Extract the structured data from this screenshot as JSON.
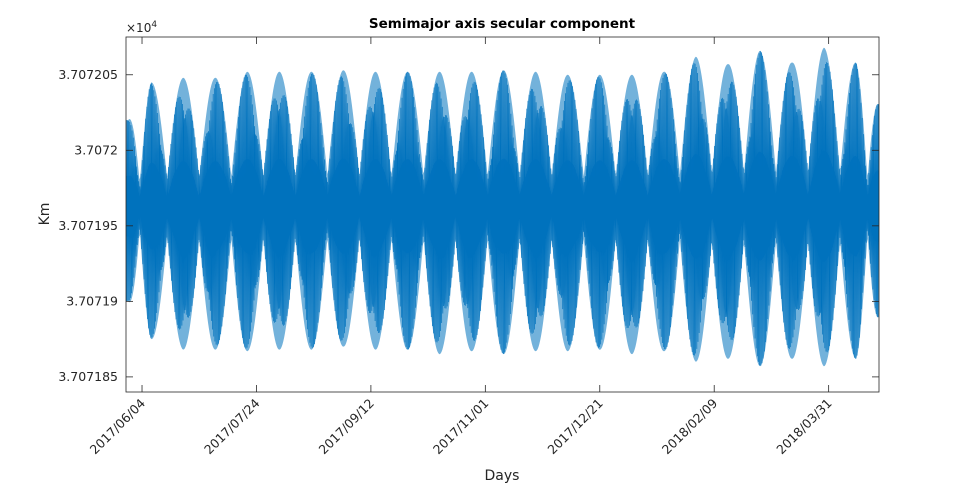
{
  "chart_data": {
    "type": "line",
    "title": "Semimajor axis secular component",
    "xlabel": "Days",
    "ylabel": "Km",
    "exponent_label": "×10",
    "exponent_power": "4",
    "x_range": [
      "2017-05-28",
      "2018-04-22"
    ],
    "ylim": [
      3.707184,
      3.7072075
    ],
    "x_tick_labels": [
      "2017/06/04",
      "2017/07/24",
      "2017/09/12",
      "2017/11/01",
      "2017/12/21",
      "2018/02/09",
      "2018/03/31"
    ],
    "x_tick_dates": [
      "2017-06-04",
      "2017-07-24",
      "2017-09-12",
      "2017-11-01",
      "2017-12-21",
      "2018-02-09",
      "2018-03-31"
    ],
    "y_tick_labels": [
      "3.707185",
      "3.70719",
      "3.707195",
      "3.7072",
      "3.707205"
    ],
    "y_tick_values": [
      3.707185,
      3.70719,
      3.707195,
      3.7072,
      3.707205
    ],
    "grid": false,
    "legend": "none",
    "series": [
      {
        "color": "#0072BD",
        "mean": 3.7071963,
        "envelope_cycles": 26,
        "envelope_peaks": [
          {
            "date": "2017-05-29",
            "max": 3.707202,
            "min": 3.70719
          },
          {
            "date": "2017-06-08",
            "max": 3.7072045,
            "min": 3.7071875
          },
          {
            "date": "2017-06-22",
            "max": 3.7072048,
            "min": 3.7071868
          },
          {
            "date": "2017-07-06",
            "max": 3.7072048,
            "min": 3.7071868
          },
          {
            "date": "2017-07-20",
            "max": 3.7072052,
            "min": 3.7071867
          },
          {
            "date": "2017-08-03",
            "max": 3.7072052,
            "min": 3.7071868
          },
          {
            "date": "2017-08-17",
            "max": 3.7072052,
            "min": 3.7071868
          },
          {
            "date": "2017-08-31",
            "max": 3.7072053,
            "min": 3.707187
          },
          {
            "date": "2017-09-14",
            "max": 3.7072052,
            "min": 3.7071868
          },
          {
            "date": "2017-09-28",
            "max": 3.7072052,
            "min": 3.7071868
          },
          {
            "date": "2017-10-12",
            "max": 3.7072052,
            "min": 3.7071865
          },
          {
            "date": "2017-10-26",
            "max": 3.7072052,
            "min": 3.7071867
          },
          {
            "date": "2017-11-09",
            "max": 3.7072053,
            "min": 3.7071865
          },
          {
            "date": "2017-11-23",
            "max": 3.7072052,
            "min": 3.7071867
          },
          {
            "date": "2017-12-07",
            "max": 3.707205,
            "min": 3.7071867
          },
          {
            "date": "2017-12-21",
            "max": 3.707205,
            "min": 3.7071868
          },
          {
            "date": "2018-01-04",
            "max": 3.707205,
            "min": 3.7071865
          },
          {
            "date": "2018-01-18",
            "max": 3.7072052,
            "min": 3.7071867
          },
          {
            "date": "2018-02-01",
            "max": 3.7072062,
            "min": 3.707186
          },
          {
            "date": "2018-02-15",
            "max": 3.7072057,
            "min": 3.7071862
          },
          {
            "date": "2018-03-01",
            "max": 3.7072066,
            "min": 3.7071857
          },
          {
            "date": "2018-03-15",
            "max": 3.7072058,
            "min": 3.7071862
          },
          {
            "date": "2018-03-29",
            "max": 3.7072068,
            "min": 3.7071857
          },
          {
            "date": "2018-04-12",
            "max": 3.7072058,
            "min": 3.7071862
          },
          {
            "date": "2018-04-22",
            "max": 3.707203,
            "min": 3.707189
          }
        ]
      }
    ]
  }
}
